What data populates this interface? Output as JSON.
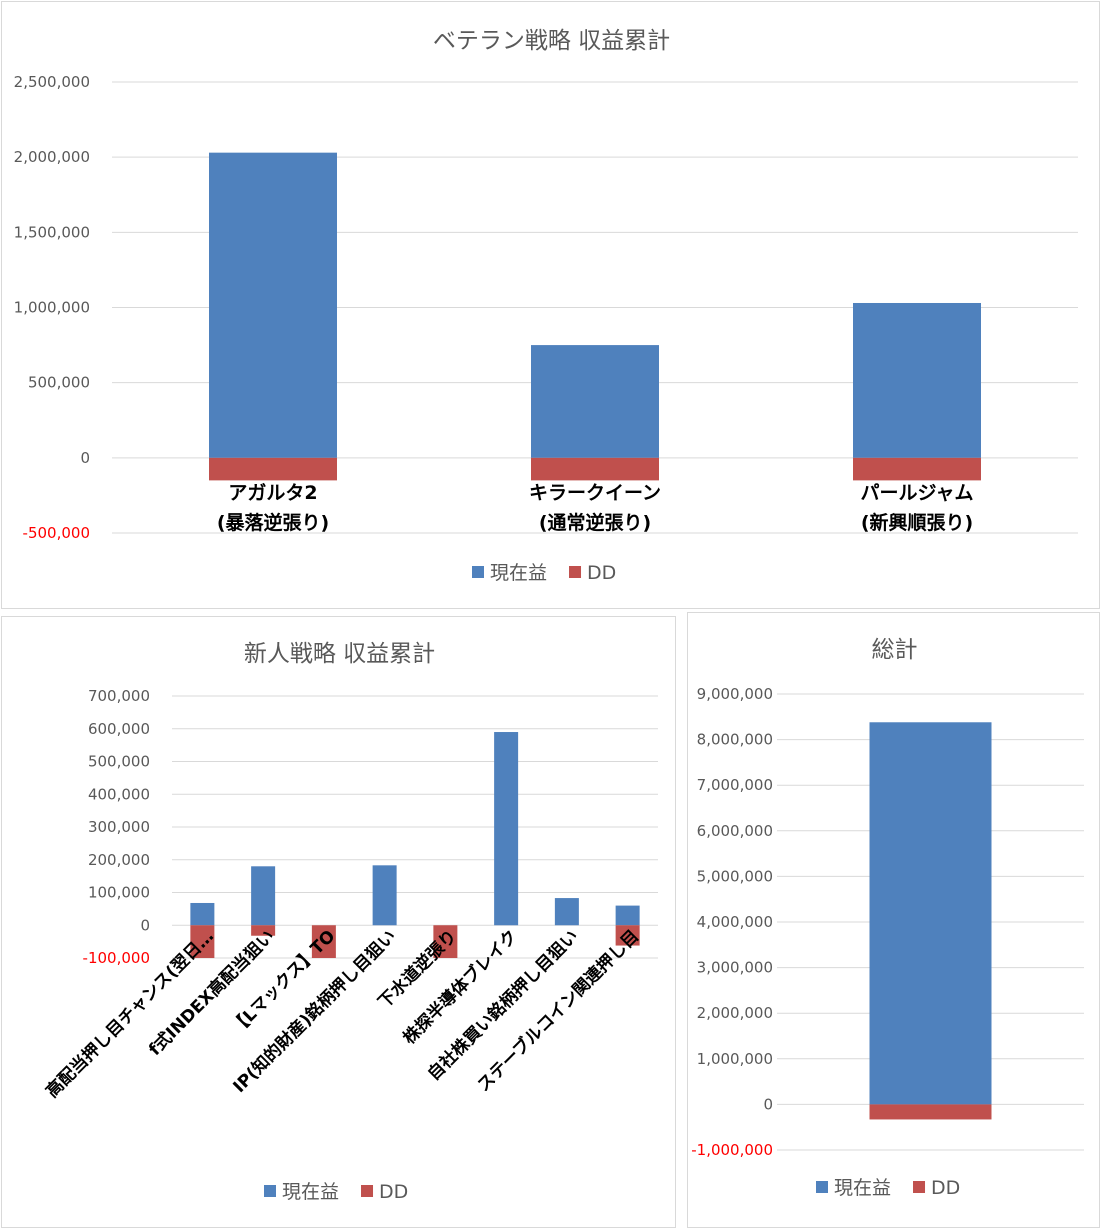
{
  "colors": {
    "profit": "#4f81bd",
    "dd": "#c0504d",
    "grid": "#d9d9d9",
    "text": "#595959",
    "negative_tick": "#ff0000"
  },
  "chart_data": [
    {
      "id": "veteran",
      "type": "bar",
      "stacked": true,
      "title": "ベテラン戦略 収益累計",
      "categories": [
        [
          "アガルタ2",
          "(暴落逆張り)"
        ],
        [
          "キラークイーン",
          "(通常逆張り)"
        ],
        [
          "パールジャム",
          "(新興順張り)"
        ]
      ],
      "series": [
        {
          "name": "現在益",
          "color": "#4f81bd",
          "values": [
            2030000,
            750000,
            1030000
          ]
        },
        {
          "name": "DD",
          "color": "#c0504d",
          "values": [
            -150000,
            -150000,
            -150000
          ]
        }
      ],
      "ylim": [
        -500000,
        2500000
      ],
      "yticks": [
        "2,500,000",
        "2,000,000",
        "1,500,000",
        "1,000,000",
        "500,000",
        "0",
        "-500,000"
      ],
      "ytick_values": [
        2500000,
        2000000,
        1500000,
        1000000,
        500000,
        0,
        -500000
      ],
      "grid": true,
      "legend": "bottom"
    },
    {
      "id": "rookie",
      "type": "bar",
      "stacked": true,
      "title": "新人戦略 収益累計",
      "categories": [
        "高配当押し目チャンス(翌日…",
        "f式INDEX高配当狙い",
        "【Lマックス】TO",
        "IP(知的財産)銘柄押し目狙い",
        "下水道逆張り",
        "株探半導体ブレイク",
        "自社株買い銘柄押し目狙い",
        "ステーブルコイン関連押し目"
      ],
      "series": [
        {
          "name": "現在益",
          "color": "#4f81bd",
          "values": [
            68000,
            180000,
            0,
            183000,
            0,
            590000,
            83000,
            60000
          ]
        },
        {
          "name": "DD",
          "color": "#c0504d",
          "values": [
            -100000,
            -32000,
            -100000,
            0,
            -100000,
            0,
            0,
            -62000
          ]
        }
      ],
      "ylim": [
        -100000,
        700000
      ],
      "yticks": [
        "700,000",
        "600,000",
        "500,000",
        "400,000",
        "300,000",
        "200,000",
        "100,000",
        "0",
        "-100,000"
      ],
      "ytick_values": [
        700000,
        600000,
        500000,
        400000,
        300000,
        200000,
        100000,
        0,
        -100000
      ],
      "grid": true,
      "legend": "bottom"
    },
    {
      "id": "total",
      "type": "bar",
      "stacked": true,
      "title": "総計",
      "categories": [
        ""
      ],
      "series": [
        {
          "name": "現在益",
          "color": "#4f81bd",
          "values": [
            8380000
          ]
        },
        {
          "name": "DD",
          "color": "#c0504d",
          "values": [
            -330000
          ]
        }
      ],
      "ylim": [
        -1000000,
        9000000
      ],
      "yticks": [
        "9,000,000",
        "8,000,000",
        "7,000,000",
        "6,000,000",
        "5,000,000",
        "4,000,000",
        "3,000,000",
        "2,000,000",
        "1,000,000",
        "0",
        "-1,000,000"
      ],
      "ytick_values": [
        9000000,
        8000000,
        7000000,
        6000000,
        5000000,
        4000000,
        3000000,
        2000000,
        1000000,
        0,
        -1000000
      ],
      "grid": true,
      "legend": "bottom"
    }
  ]
}
